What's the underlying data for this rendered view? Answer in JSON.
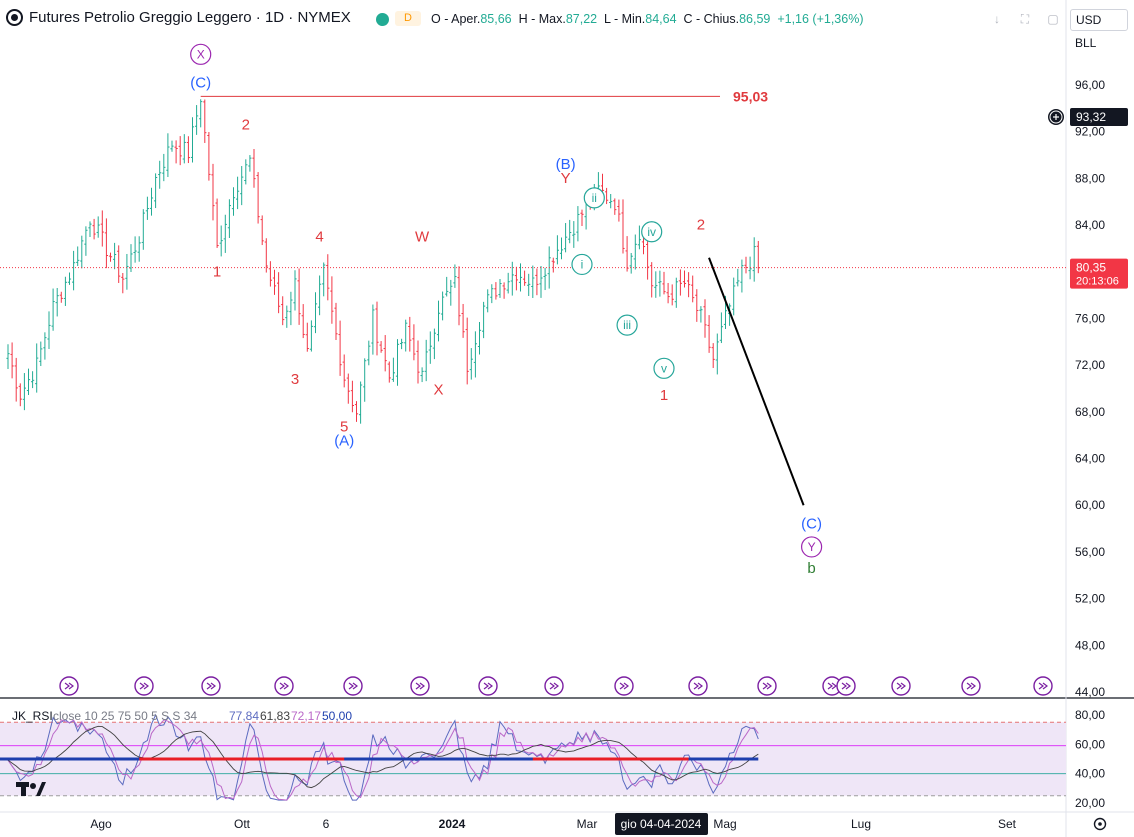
{
  "header": {
    "symbol": "Futures Petrolio Greggio Leggero · 1D · NYMEX",
    "badge_d": "D",
    "o_label": "O - Aper.",
    "o_value": "85,66",
    "h_label": "H - Max.",
    "h_value": "87,22",
    "l_label": "L - Min.",
    "l_value": "84,64",
    "c_label": "C - Chius.",
    "c_value": "86,59",
    "change": "+1,16 (+1,36%)"
  },
  "axis_top": {
    "currency": "USD",
    "unit": "BLL"
  },
  "colors": {
    "up": "#22ab94",
    "down": "#f23645",
    "red_label": "#e03a3e",
    "blue_label": "#2962ff",
    "green_label": "#26a69a",
    "purple": "#9c27b0",
    "price_line": "#f23645",
    "panel_bg": "#efe6f7",
    "rsi_mid_blue": "#1e3fae",
    "rsi_mid_red": "#e91e26"
  },
  "chart_data": {
    "type": "candlestick",
    "ylim": [
      44,
      98
    ],
    "price_ticks": [
      "96,00",
      "92,00",
      "88,00",
      "84,00",
      "80,00",
      "76,00",
      "72,00",
      "68,00",
      "64,00",
      "60,00",
      "56,00",
      "52,00",
      "48,00",
      "44,00"
    ],
    "x_ticks": [
      "Ago",
      "Ott",
      "6",
      "2024",
      "Mar",
      "Mag",
      "Lug",
      "Set"
    ],
    "x_tick_bold": "2024",
    "crosshair_date": "gio 04-04-2024",
    "last_price": "80,35",
    "countdown": "20:13:06",
    "crosshair_price": "93,32",
    "level_label": "95,03",
    "level": 95.03,
    "path_anchors": [
      [
        0,
        73
      ],
      [
        3,
        69.5
      ],
      [
        7,
        72
      ],
      [
        11,
        77
      ],
      [
        16,
        80.5
      ],
      [
        20,
        84.6
      ],
      [
        24,
        82
      ],
      [
        28,
        79.5
      ],
      [
        32,
        83
      ],
      [
        36,
        88
      ],
      [
        40,
        91
      ],
      [
        44,
        90.2
      ],
      [
        47,
        95
      ],
      [
        51,
        82
      ],
      [
        55,
        87
      ],
      [
        59,
        89.5
      ],
      [
        63,
        80.5
      ],
      [
        67,
        76
      ],
      [
        70,
        79
      ],
      [
        73,
        73
      ],
      [
        77,
        80
      ],
      [
        82,
        71
      ],
      [
        85,
        68
      ],
      [
        89,
        76
      ],
      [
        93,
        71
      ],
      [
        97,
        75
      ],
      [
        101,
        71
      ],
      [
        105,
        77
      ],
      [
        109,
        79
      ],
      [
        112,
        72
      ],
      [
        116,
        77
      ],
      [
        120,
        79
      ],
      [
        124,
        80
      ],
      [
        128,
        79
      ],
      [
        132,
        81
      ],
      [
        136,
        83
      ],
      [
        140,
        85
      ],
      [
        144,
        87
      ],
      [
        148,
        86
      ],
      [
        151,
        81
      ],
      [
        154,
        83.5
      ],
      [
        157,
        79
      ],
      [
        161,
        78
      ],
      [
        165,
        79
      ],
      [
        169,
        76
      ],
      [
        172,
        72.5
      ],
      [
        175,
        76
      ],
      [
        179,
        80
      ],
      [
        182,
        81.4
      ],
      [
        183,
        80.35
      ]
    ],
    "rsi": {
      "label": "JK_RSI",
      "params": "close 10 25 75 50 5 S S 34",
      "values": [
        "77,84",
        "61,83",
        "72,17",
        "50,00"
      ],
      "ylim": [
        18,
        82
      ],
      "ticks": [
        "80,00",
        "60,00",
        "40,00",
        "20,00"
      ],
      "upper": 75,
      "lower": 25,
      "mid": 50,
      "mid2": 59,
      "lower2": 40
    },
    "wave_labels": [
      {
        "text": "X",
        "idx": 47,
        "price": 98.2,
        "color": "purple",
        "circle": true
      },
      {
        "text": "(C)",
        "idx": 47,
        "price": 95.8,
        "color": "blue"
      },
      {
        "text": "2",
        "idx": 58,
        "price": 92.2,
        "color": "red"
      },
      {
        "text": "1",
        "idx": 51,
        "price": 79.6,
        "color": "red"
      },
      {
        "text": "4",
        "idx": 76,
        "price": 82.6,
        "color": "red"
      },
      {
        "text": "3",
        "idx": 70,
        "price": 70.4,
        "color": "red"
      },
      {
        "text": "5",
        "idx": 82,
        "price": 66.3,
        "color": "red"
      },
      {
        "text": "(A)",
        "idx": 82,
        "price": 65.1,
        "color": "blue"
      },
      {
        "text": "W",
        "idx": 101,
        "price": 82.6,
        "color": "red"
      },
      {
        "text": "X",
        "idx": 105,
        "price": 69.5,
        "color": "red"
      },
      {
        "text": "(B)",
        "idx": 136,
        "price": 88.8,
        "color": "blue"
      },
      {
        "text": "Y",
        "idx": 136,
        "price": 87.6,
        "color": "red"
      },
      {
        "text": "ii",
        "idx": 143,
        "price": 85.9,
        "color": "green",
        "circle": true
      },
      {
        "text": "i",
        "idx": 140,
        "price": 80.2,
        "color": "green",
        "circle": true
      },
      {
        "text": "iv",
        "idx": 157,
        "price": 83.0,
        "color": "green",
        "circle": true
      },
      {
        "text": "iii",
        "idx": 151,
        "price": 75.0,
        "color": "green",
        "circle": true
      },
      {
        "text": "v",
        "idx": 160,
        "price": 71.3,
        "color": "green",
        "circle": true
      },
      {
        "text": "2",
        "idx": 169,
        "price": 83.6,
        "color": "red"
      },
      {
        "text": "1",
        "idx": 160,
        "price": 69.0,
        "color": "red"
      },
      {
        "text": "(C)",
        "idx": 196,
        "price": 58.0,
        "color": "blue"
      },
      {
        "text": "Y",
        "idx": 196,
        "price": 56.0,
        "color": "purple",
        "circle": true
      },
      {
        "text": "b",
        "idx": 196,
        "price": 54.2,
        "color": "darkgreen"
      }
    ],
    "projection": {
      "from": [
        170,
        81.2
      ],
      "to": [
        196,
        60.0
      ]
    }
  }
}
